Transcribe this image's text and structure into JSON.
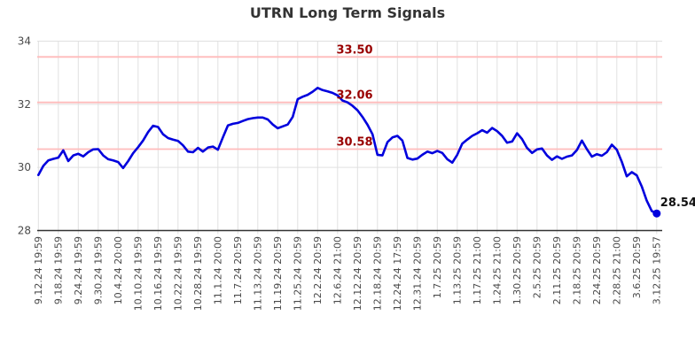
{
  "title": "UTRN Long Term Signals",
  "y_axis": {
    "tick_labels": [
      "34",
      "32",
      "30",
      "28"
    ]
  },
  "signal_lines": [
    {
      "label": "33.50",
      "value": 33.5
    },
    {
      "label": "32.06",
      "value": 32.06
    },
    {
      "label": "30.58",
      "value": 30.58
    }
  ],
  "last_point": {
    "label": "28.54",
    "value": 28.54
  },
  "colors": {
    "price_line": "#0000dd",
    "signal_line": "#ffbbbb",
    "signal_label": "#990000",
    "grid": "#e0e0e0",
    "axis": "#333333",
    "title": "#333333",
    "tick_text": "#4a4a4a",
    "last_label": "#111111",
    "background": "#ffffff"
  },
  "chart_data": {
    "type": "line",
    "title": "UTRN Long Term Signals",
    "ylabel": "",
    "xlabel": "",
    "ylim": [
      28,
      34
    ],
    "y_ticks": [
      28,
      30,
      32,
      34
    ],
    "grid": true,
    "points_per_tick_interval": 4,
    "x_tick_labels": [
      "9.12.24 19:59",
      "9.18.24 19:59",
      "9.24.24 19:59",
      "9.30.24 19:59",
      "10.4.24 20:00",
      "10.10.24 19:59",
      "10.16.24 19:59",
      "10.22.24 19:59",
      "10.28.24 19:59",
      "11.1.24 20:00",
      "11.7.24 20:59",
      "11.13.24 20:59",
      "11.19.24 20:59",
      "11.25.24 20:59",
      "12.2.24 20:59",
      "12.6.24 21:00",
      "12.12.24 20:59",
      "12.18.24 20:59",
      "12.24.24 17:59",
      "12.31.24 20:59",
      "1.7.25 20:59",
      "1.13.25 20:59",
      "1.17.25 21:00",
      "1.24.25 21:00",
      "1.30.25 20:59",
      "2.5.25 20:59",
      "2.11.25 20:59",
      "2.18.25 20:59",
      "2.24.25 20:59",
      "2.28.25 21:00",
      "3.6.25 20:59",
      "3.12.25 19:57"
    ],
    "signal_levels": [
      33.5,
      32.06,
      30.58
    ],
    "last_value": 28.54,
    "values": [
      29.76,
      30.05,
      30.22,
      30.27,
      30.31,
      30.54,
      30.2,
      30.38,
      30.43,
      30.35,
      30.48,
      30.57,
      30.58,
      30.38,
      30.26,
      30.22,
      30.17,
      29.98,
      30.2,
      30.45,
      30.64,
      30.85,
      31.12,
      31.32,
      31.28,
      31.05,
      30.93,
      30.88,
      30.84,
      30.7,
      30.5,
      30.48,
      30.62,
      30.5,
      30.63,
      30.66,
      30.56,
      30.95,
      31.33,
      31.38,
      31.41,
      31.47,
      31.53,
      31.56,
      31.58,
      31.58,
      31.52,
      31.36,
      31.24,
      31.3,
      31.36,
      31.6,
      32.16,
      32.24,
      32.3,
      32.4,
      32.52,
      32.45,
      32.41,
      32.36,
      32.28,
      32.12,
      32.06,
      31.95,
      31.81,
      31.6,
      31.35,
      31.05,
      30.4,
      30.38,
      30.8,
      30.95,
      31.0,
      30.85,
      30.3,
      30.25,
      30.28,
      30.4,
      30.5,
      30.45,
      30.52,
      30.46,
      30.26,
      30.15,
      30.4,
      30.75,
      30.88,
      31.0,
      31.08,
      31.18,
      31.1,
      31.25,
      31.15,
      31.0,
      30.78,
      30.82,
      31.08,
      30.9,
      30.62,
      30.46,
      30.57,
      30.6,
      30.38,
      30.24,
      30.35,
      30.27,
      30.34,
      30.38,
      30.55,
      30.85,
      30.58,
      30.34,
      30.42,
      30.37,
      30.48,
      30.72,
      30.56,
      30.18,
      29.72,
      29.85,
      29.75,
      29.4,
      28.95,
      28.62,
      28.54
    ]
  }
}
